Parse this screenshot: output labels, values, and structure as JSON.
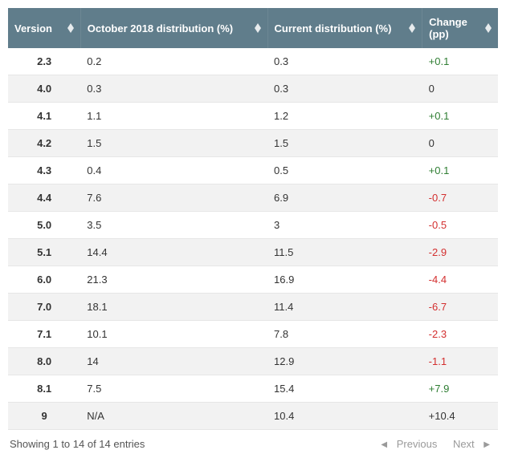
{
  "table": {
    "columns": [
      {
        "key": "version",
        "label": "Version"
      },
      {
        "key": "oct",
        "label": "October 2018 distribution (%)"
      },
      {
        "key": "cur",
        "label": "Current distribution (%)"
      },
      {
        "key": "chg",
        "label": "Change (pp)"
      }
    ],
    "rows": [
      {
        "version": "2.3",
        "oct": "0.2",
        "cur": "0.3",
        "chg": "+0.1",
        "chg_class": "pos"
      },
      {
        "version": "4.0",
        "oct": "0.3",
        "cur": "0.3",
        "chg": "0",
        "chg_class": "neutral"
      },
      {
        "version": "4.1",
        "oct": "1.1",
        "cur": "1.2",
        "chg": "+0.1",
        "chg_class": "pos"
      },
      {
        "version": "4.2",
        "oct": "1.5",
        "cur": "1.5",
        "chg": "0",
        "chg_class": "neutral"
      },
      {
        "version": "4.3",
        "oct": "0.4",
        "cur": "0.5",
        "chg": "+0.1",
        "chg_class": "pos"
      },
      {
        "version": "4.4",
        "oct": "7.6",
        "cur": "6.9",
        "chg": "-0.7",
        "chg_class": "neg"
      },
      {
        "version": "5.0",
        "oct": "3.5",
        "cur": "3",
        "chg": "-0.5",
        "chg_class": "neg"
      },
      {
        "version": "5.1",
        "oct": "14.4",
        "cur": "11.5",
        "chg": "-2.9",
        "chg_class": "neg"
      },
      {
        "version": "6.0",
        "oct": "21.3",
        "cur": "16.9",
        "chg": "-4.4",
        "chg_class": "neg"
      },
      {
        "version": "7.0",
        "oct": "18.1",
        "cur": "11.4",
        "chg": "-6.7",
        "chg_class": "neg"
      },
      {
        "version": "7.1",
        "oct": "10.1",
        "cur": "7.8",
        "chg": "-2.3",
        "chg_class": "neg"
      },
      {
        "version": "8.0",
        "oct": "14",
        "cur": "12.9",
        "chg": "-1.1",
        "chg_class": "neg"
      },
      {
        "version": "8.1",
        "oct": "7.5",
        "cur": "15.4",
        "chg": "+7.9",
        "chg_class": "pos"
      },
      {
        "version": "9",
        "oct": "N/A",
        "cur": "10.4",
        "chg": "+10.4",
        "chg_class": "neutral"
      }
    ],
    "colors": {
      "header_bg": "#607d8b",
      "header_fg": "#ffffff",
      "row_alt_bg": "#f2f2f2",
      "border": "#e6e6e6",
      "positive": "#2e7d32",
      "negative": "#d32f2f",
      "neutral": "#333333"
    }
  },
  "footer": {
    "info": "Showing 1 to 14 of 14 entries",
    "prev_label": "Previous",
    "next_label": "Next"
  }
}
